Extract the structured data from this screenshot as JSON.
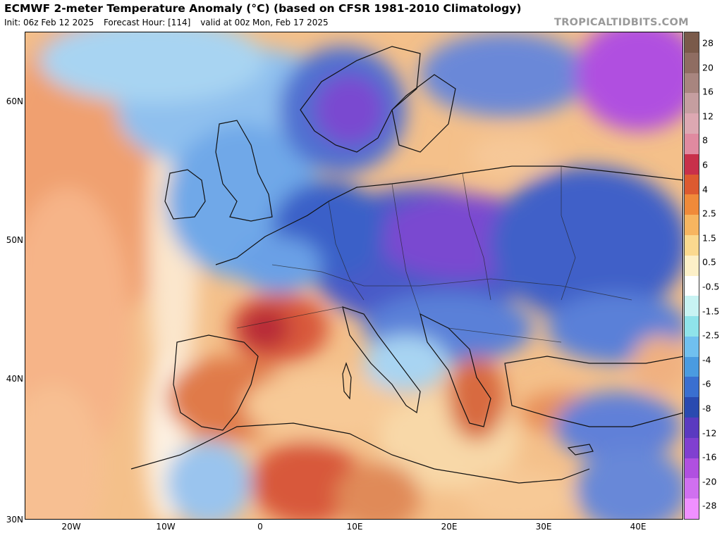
{
  "header": {
    "title": "ECMWF 2-meter Temperature Anomaly (°C) (based on CFSR 1981-2010 Climatology)",
    "init": "Init: 06z Feb 12 2025",
    "forecast_hour": "Forecast Hour: [114]",
    "valid": "valid at 00z Mon, Feb 17 2025",
    "watermark": "TROPICALTIDBITS.COM"
  },
  "axes": {
    "lat_labels": [
      "60N",
      "50N",
      "40N",
      "30N"
    ],
    "lon_labels": [
      "20W",
      "10W",
      "0",
      "10E",
      "20E",
      "30E",
      "40E"
    ]
  },
  "colorbar": {
    "labels": [
      "28",
      "20",
      "16",
      "12",
      "8",
      "6",
      "4",
      "2.5",
      "1.5",
      "0.5",
      "-0.5",
      "-1.5",
      "-2.5",
      "-4",
      "-6",
      "-8",
      "-12",
      "-16",
      "-20",
      "-28"
    ],
    "colors": [
      "#7a5a4a",
      "#8f6d62",
      "#a8857f",
      "#c59ea0",
      "#dda8b2",
      "#e08aa0",
      "#c8304a",
      "#dd5a30",
      "#f08a3a",
      "#f7b560",
      "#fbd98f",
      "#fdf0c8",
      "#ffffff",
      "#c8f3f3",
      "#8fe3ea",
      "#70c0ef",
      "#4a9be0",
      "#3a6fd0",
      "#2a4ab0",
      "#5a3ac0",
      "#8040d0",
      "#b050e0",
      "#d070f0",
      "#f090ff"
    ]
  },
  "map": {
    "extent": {
      "lon_min": -25,
      "lon_max": 45,
      "lat_min": 30,
      "lat_max": 65
    },
    "colors": {
      "warm_ocean": "#f6b07a",
      "warm_strong": "#dd6a40",
      "hot_spot": "#c0303a",
      "cool": "#70a8e8",
      "cold": "#3a60c8",
      "very_cold": "#7a48d0",
      "neutral": "#fbe6c8"
    }
  }
}
